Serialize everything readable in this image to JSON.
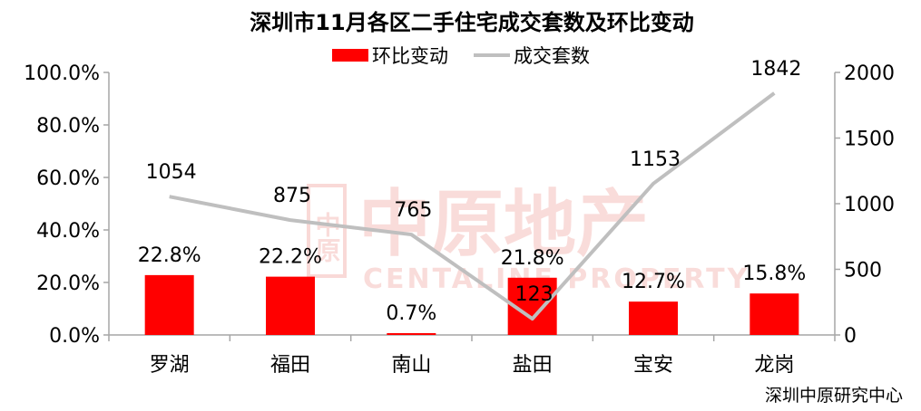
{
  "chart_data": {
    "type": "bar",
    "title": "深圳市11月各区二手住宅成交套数及环比变动",
    "categories": [
      "罗湖",
      "福田",
      "南山",
      "盐田",
      "宝安",
      "龙岗"
    ],
    "series": [
      {
        "name": "环比变动",
        "type": "bar",
        "axis": "left",
        "color": "#ff0000",
        "values": [
          22.8,
          22.2,
          0.7,
          21.8,
          12.7,
          15.8
        ],
        "labels": [
          "22.8%",
          "22.2%",
          "0.7%",
          "21.8%",
          "12.7%",
          "15.8%"
        ]
      },
      {
        "name": "成交套数",
        "type": "line",
        "axis": "right",
        "color": "#bfbfbf",
        "values": [
          1054,
          875,
          765,
          123,
          1153,
          1842
        ],
        "labels": [
          "1054",
          "875",
          "765",
          "123",
          "1153",
          "1842"
        ]
      }
    ],
    "y_left": {
      "min": 0,
      "max": 100,
      "ticks": [
        "0.0%",
        "20.0%",
        "40.0%",
        "60.0%",
        "80.0%",
        "100.0%"
      ]
    },
    "y_right": {
      "min": 0,
      "max": 2000,
      "ticks": [
        "0",
        "500",
        "1000",
        "1500",
        "2000"
      ]
    },
    "grid": false,
    "legend_position": "top-center",
    "source": "深圳中原研究中心",
    "watermark": {
      "cn": "中原地产",
      "en": "CENTALINE PROPERTY",
      "seal": "中原"
    }
  }
}
